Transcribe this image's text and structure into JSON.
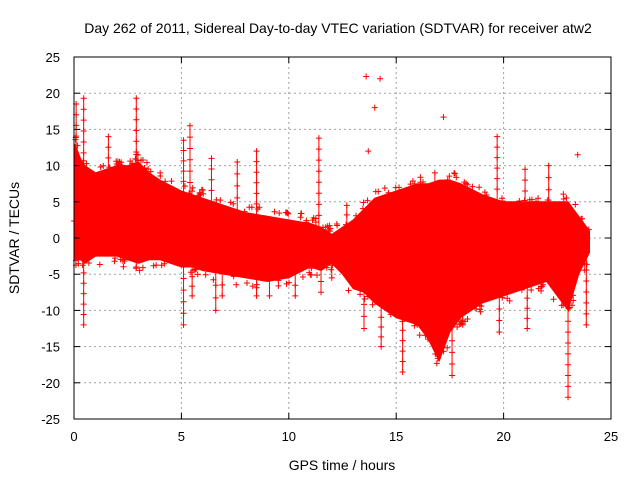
{
  "chart_data": {
    "type": "scatter",
    "title": "Day 262 of 2011, Sidereal Day-to-day VTEC variation (SDTVAR) for receiver atw2",
    "xlabel": "GPS time / hours",
    "ylabel": "SDTVAR / TECUs",
    "xlim": [
      0,
      25
    ],
    "ylim": [
      -25,
      25
    ],
    "xticks": [
      0,
      5,
      10,
      15,
      20,
      25
    ],
    "yticks": [
      -25,
      -20,
      -15,
      -10,
      -5,
      0,
      5,
      10,
      15,
      20,
      25
    ],
    "xtick_labels": [
      "0",
      "5",
      "10",
      "15",
      "20",
      "25"
    ],
    "ytick_labels": [
      "-25",
      "-20",
      "-15",
      "-10",
      "-5",
      "0",
      "5",
      "10",
      "15",
      "20",
      "25"
    ],
    "grid": true,
    "marker": "+",
    "series_color": "#ff0000",
    "x_extent": [
      0,
      24
    ],
    "envelope": {
      "x": [
        0,
        0.05,
        0.3,
        0.5,
        1.0,
        1.5,
        2.0,
        2.5,
        3.0,
        3.5,
        4.0,
        5.0,
        5.5,
        6.0,
        7.0,
        8.0,
        9.0,
        10.0,
        11.0,
        11.5,
        12.0,
        12.5,
        13.0,
        13.5,
        14.0,
        15.0,
        16.0,
        16.5,
        17.0,
        17.5,
        18.0,
        19.0,
        20.0,
        21.0,
        22.0,
        23.0,
        23.5,
        24.0
      ],
      "upper": [
        1,
        13,
        11,
        10,
        9,
        9.5,
        10,
        10,
        10.5,
        9,
        8,
        6.5,
        6,
        5.5,
        4.5,
        3.5,
        3,
        2.5,
        2,
        1.5,
        0.5,
        1.5,
        2.5,
        4,
        5.5,
        6.5,
        7.5,
        7.5,
        8,
        8,
        7.5,
        6,
        5,
        5,
        5,
        5,
        3,
        1
      ],
      "lower": [
        1,
        -3,
        -3,
        -3.5,
        -2.5,
        -2.5,
        -2.5,
        -3,
        -3.5,
        -3,
        -3,
        -4,
        -4,
        -4.5,
        -5,
        -5.5,
        -6,
        -5.5,
        -4,
        -4.5,
        -3.5,
        -5,
        -7,
        -7.5,
        -9,
        -11,
        -12,
        -14,
        -17,
        -13,
        -11,
        -9,
        -8,
        -7,
        -6,
        -10,
        -5,
        -2
      ]
    },
    "spikes": [
      {
        "x": 0.1,
        "y": 18.5
      },
      {
        "x": 0.45,
        "y": 19.3
      },
      {
        "x": 0.45,
        "y": -12
      },
      {
        "x": 1.6,
        "y": 14
      },
      {
        "x": 2.9,
        "y": 19.3
      },
      {
        "x": 2.9,
        "y": -4
      },
      {
        "x": 5.1,
        "y": 13.5
      },
      {
        "x": 5.1,
        "y": -12
      },
      {
        "x": 5.4,
        "y": 15.5
      },
      {
        "x": 5.5,
        "y": -8
      },
      {
        "x": 6.4,
        "y": 11
      },
      {
        "x": 6.9,
        "y": -8
      },
      {
        "x": 6.6,
        "y": -10
      },
      {
        "x": 7.6,
        "y": 10.5
      },
      {
        "x": 8.5,
        "y": 12
      },
      {
        "x": 8.5,
        "y": -8
      },
      {
        "x": 9.1,
        "y": -8
      },
      {
        "x": 10.3,
        "y": -8
      },
      {
        "x": 11.4,
        "y": 13.8
      },
      {
        "x": 11.5,
        "y": -7.5
      },
      {
        "x": 12.0,
        "y": -5.5
      },
      {
        "x": 12.7,
        "y": 4.5
      },
      {
        "x": 13.6,
        "y": 22.3
      },
      {
        "x": 13.7,
        "y": 12
      },
      {
        "x": 14.0,
        "y": 18
      },
      {
        "x": 14.25,
        "y": 22
      },
      {
        "x": 13.5,
        "y": -12.5
      },
      {
        "x": 14.3,
        "y": -15
      },
      {
        "x": 15.3,
        "y": -18.5
      },
      {
        "x": 16.2,
        "y": -11
      },
      {
        "x": 16.8,
        "y": 9
      },
      {
        "x": 17.2,
        "y": 16.7
      },
      {
        "x": 17.6,
        "y": -19
      },
      {
        "x": 18.1,
        "y": -12
      },
      {
        "x": 19.7,
        "y": 14
      },
      {
        "x": 19.8,
        "y": -13
      },
      {
        "x": 21.0,
        "y": 9.5
      },
      {
        "x": 21.1,
        "y": -12.5
      },
      {
        "x": 22.1,
        "y": 10
      },
      {
        "x": 23.0,
        "y": -22
      },
      {
        "x": 23.45,
        "y": 11.5
      },
      {
        "x": 23.85,
        "y": -12
      }
    ]
  }
}
